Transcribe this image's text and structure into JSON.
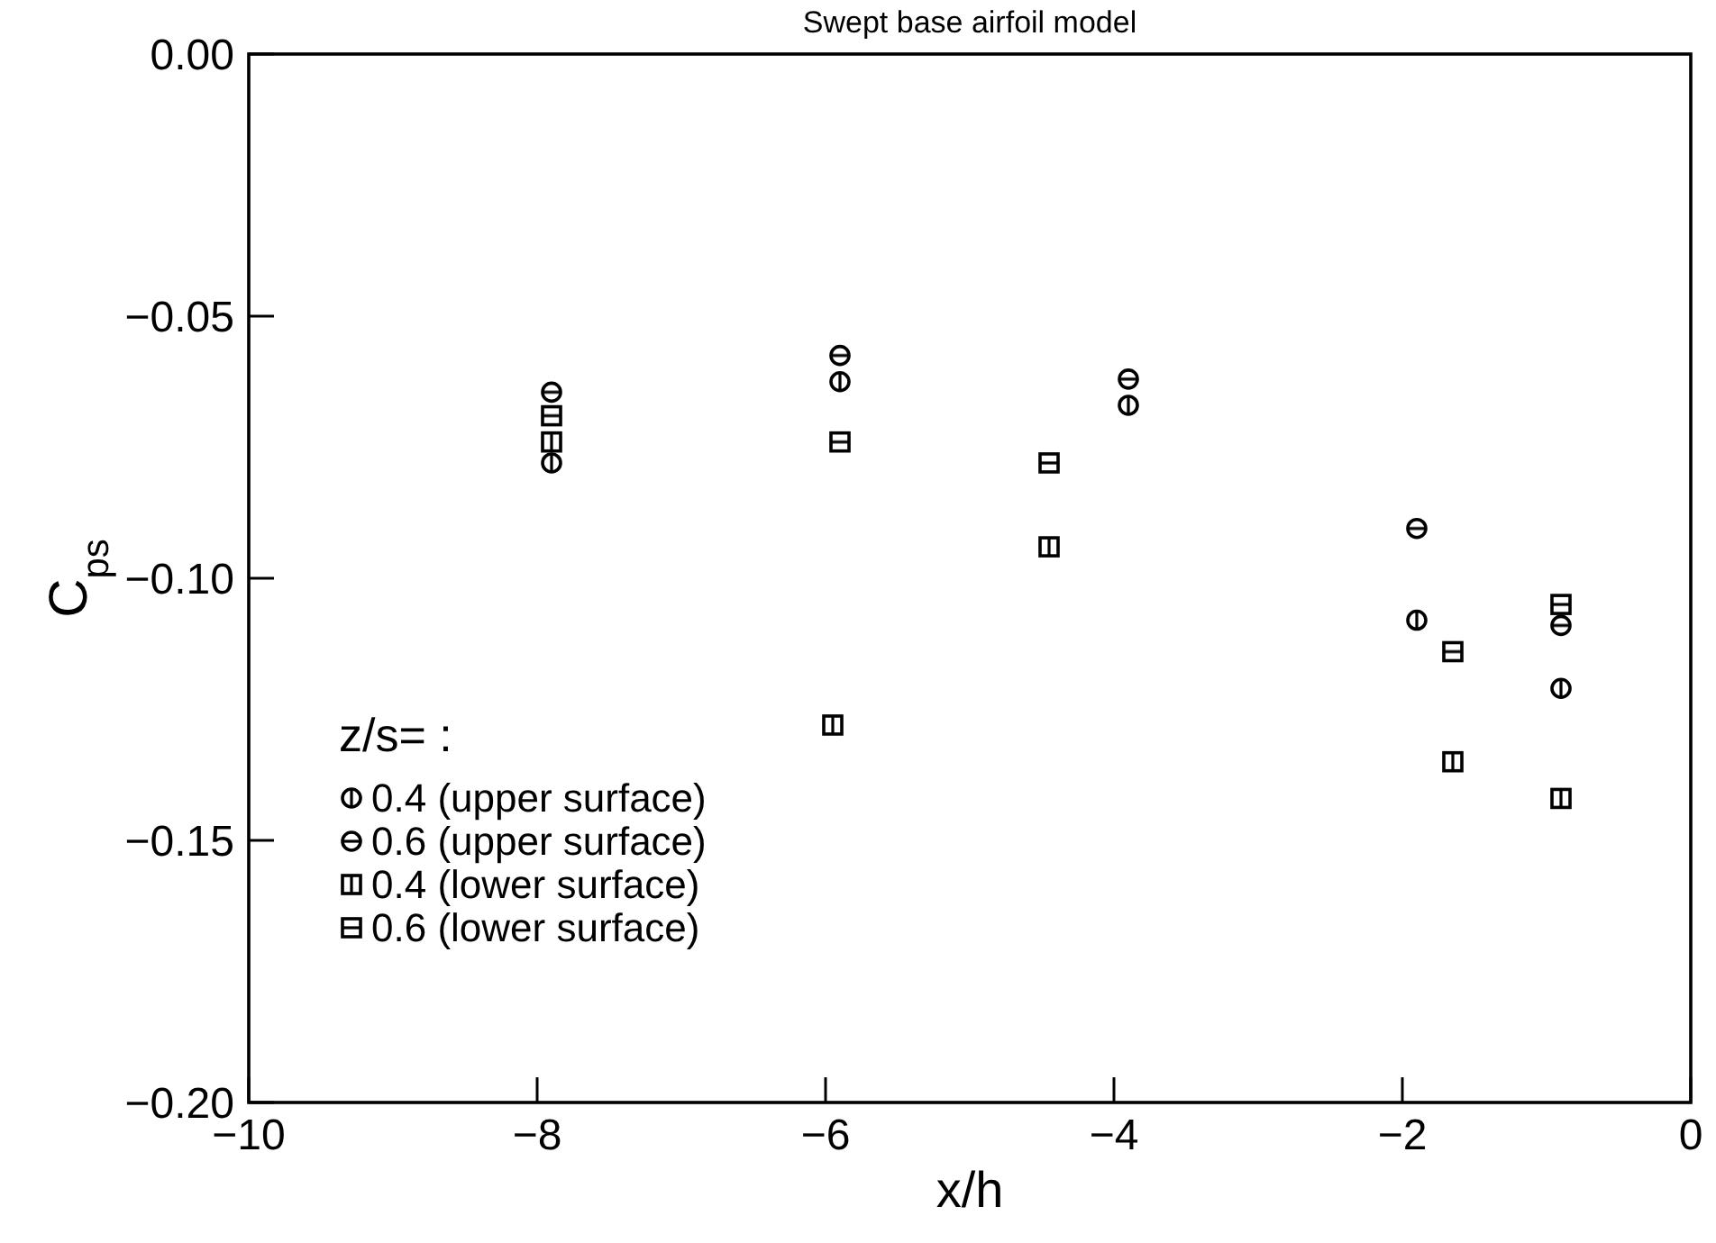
{
  "chart_data": {
    "type": "scatter",
    "title": "Swept base airfoil model",
    "xlabel": "x/h",
    "ylabel": "C$_{ps}$",
    "legend_title": "z/s= :",
    "xlim": [
      -10,
      0
    ],
    "xticks": [
      {
        "value": -10,
        "label": "−10"
      },
      {
        "value": -8,
        "label": "−8"
      },
      {
        "value": -6,
        "label": "−6"
      },
      {
        "value": -4,
        "label": "−4"
      },
      {
        "value": -2,
        "label": "−2"
      },
      0
    ],
    "ylim": [
      -0.2,
      0
    ],
    "yticks": [
      {
        "value": -0.2,
        "label": "−0.20"
      },
      {
        "value": -0.15,
        "label": "−0.15"
      },
      {
        "value": -0.1,
        "label": "−0.10"
      },
      {
        "value": -0.05,
        "label": "−0.05"
      },
      {
        "value": 0,
        "label": "0.00"
      }
    ],
    "grid": false,
    "legend": "bottom left",
    "series": [
      {
        "name": "0.4 (upper surface)",
        "color": "#000000",
        "marker": "circle",
        "x": [
          -7.9,
          -5.9,
          -3.9,
          -1.9,
          -0.9
        ],
        "values": [
          -0.078,
          -0.0625,
          -0.067,
          -0.108,
          -0.121
        ]
      },
      {
        "name": "0.6 (upper surface)",
        "color": "#000000",
        "marker": "circle",
        "x": [
          -7.9,
          -5.9,
          -3.9,
          -1.9,
          -0.9
        ],
        "values": [
          -0.0645,
          -0.0575,
          -0.062,
          -0.0905,
          -0.109
        ]
      },
      {
        "name": "0.4 (lower surface)",
        "color": "#000000",
        "marker": "square",
        "x": [
          -7.9,
          -5.95,
          -4.45,
          -1.65,
          -0.9
        ],
        "values": [
          -0.074,
          -0.128,
          -0.094,
          -0.135,
          -0.142
        ]
      },
      {
        "name": "0.6 (lower surface)",
        "color": "#000000",
        "marker": "square",
        "x": [
          -7.9,
          -5.9,
          -4.45,
          -1.65,
          -0.9
        ],
        "values": [
          -0.069,
          -0.074,
          -0.078,
          -0.114,
          -0.105
        ]
      }
    ]
  }
}
